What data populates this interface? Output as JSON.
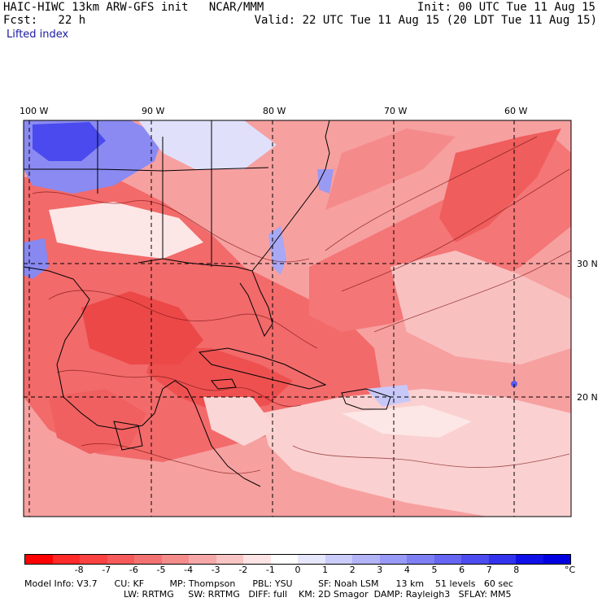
{
  "header": {
    "title": "HAIC-HIWC 13km ARW-GFS init   NCAR/MMM",
    "init": "Init: 00 UTC Tue 11 Aug 15",
    "fcst": "Fcst:   22 h",
    "valid": "Valid: 22 UTC Tue 11 Aug 15 (20 LDT Tue 11 Aug 15)",
    "field": "Lifted index"
  },
  "map": {
    "lon_labels": [
      "100 W",
      "90 W",
      "80 W",
      "70 W",
      "60 W"
    ],
    "lat_labels": [
      "30 N",
      "20 N"
    ],
    "colors": {
      "strong_warm": "#ff3030",
      "warm": "#f77070",
      "neutral": "#fde6e6",
      "cold": "#6060f0"
    }
  },
  "colorbar": {
    "colors": [
      "#ff0000",
      "#ff2a2a",
      "#fb4242",
      "#f65a5a",
      "#f27272",
      "#f48c8c",
      "#f6a8a8",
      "#f9c4c4",
      "#fde3e3",
      "#ffffff",
      "#e6e6fc",
      "#ccccfa",
      "#b3b3f8",
      "#9999f6",
      "#7f7ff4",
      "#6666f2",
      "#4c4cf0",
      "#3333ee",
      "#1010e8",
      "#0000e0"
    ],
    "labels": [
      "-8",
      "-7",
      "-6",
      "-5",
      "-4",
      "-3",
      "-2",
      "-1",
      "0",
      "1",
      "2",
      "3",
      "4",
      "5",
      "6",
      "7",
      "8"
    ],
    "unit": "°C"
  },
  "model_info": {
    "line1": "Model Info: V3.7      CU: KF         MP: Thompson      PBL: YSU         SF: Noah LSM      13 km    51 levels   60 sec",
    "line2": "LW: RRTMG     SW: RRTMG   DIFF: full    KM: 2D Smagor  DAMP: Rayleigh3   SFLAY: MM5"
  }
}
